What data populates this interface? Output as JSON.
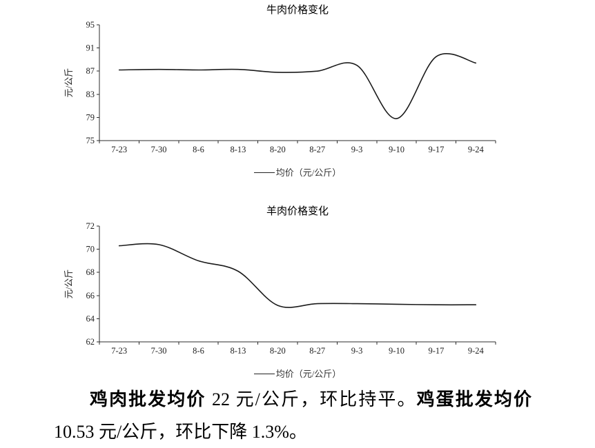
{
  "page": {
    "background": "#ffffff"
  },
  "chart_data": [
    {
      "id": "beef",
      "type": "line",
      "title": "牛肉价格变化",
      "xlabel": "",
      "ylabel": "元/公斤",
      "legend": "均价（元/公斤）",
      "legend_position": "bottom",
      "grid": false,
      "line_color": "#1a1a1a",
      "categories": [
        "7-23",
        "7-30",
        "8-6",
        "8-13",
        "8-20",
        "8-27",
        "9-3",
        "9-10",
        "9-17",
        "9-24"
      ],
      "values": [
        87.2,
        87.3,
        87.2,
        87.3,
        86.8,
        87.0,
        88.0,
        78.8,
        89.5,
        88.4
      ],
      "ylim": [
        75,
        95
      ],
      "yticks": [
        75,
        79,
        83,
        87,
        91,
        95
      ]
    },
    {
      "id": "mutton",
      "type": "line",
      "title": "羊肉价格变化",
      "xlabel": "",
      "ylabel": "元/公斤",
      "legend": "均价（元/公斤）",
      "legend_position": "bottom",
      "grid": false,
      "line_color": "#1a1a1a",
      "categories": [
        "7-23",
        "7-30",
        "8-6",
        "8-13",
        "8-20",
        "8-27",
        "9-3",
        "9-10",
        "9-17",
        "9-24"
      ],
      "values": [
        70.3,
        70.4,
        69.0,
        68.1,
        65.15,
        65.3,
        65.3,
        65.25,
        65.2,
        65.2
      ],
      "ylim": [
        62,
        72
      ],
      "yticks": [
        62,
        64,
        66,
        68,
        70,
        72
      ]
    }
  ],
  "paragraph": {
    "segments": [
      {
        "text": "鸡肉批发均价",
        "bold": true
      },
      {
        "text": " 22 元/公斤，环比持平。",
        "bold": false
      },
      {
        "text": "鸡蛋批发均价",
        "bold": true
      },
      {
        "text": " 10.53 元/公斤，环比下降 1.3%。",
        "bold": false
      }
    ]
  }
}
